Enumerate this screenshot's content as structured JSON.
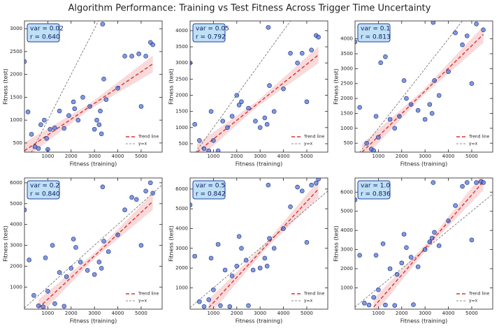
{
  "title": "Algorithm Performance: Training vs Test Fitness Across Trigger Time Uncertainty",
  "chart_data": [
    {
      "type": "scatter",
      "annotation": [
        "var = 0.02",
        "r = 0.640"
      ],
      "xlabel": "Fitness (training)",
      "ylabel": "Fitness (test)",
      "color": "#4a6fd0",
      "xlim": [
        0,
        5900
      ],
      "ylim": [
        300,
        3170
      ],
      "xticks": [
        1000,
        2000,
        3000,
        4000,
        5000
      ],
      "yticks": [
        500,
        1000,
        1500,
        2000,
        2500,
        3000
      ],
      "x": [
        0,
        150,
        300,
        450,
        600,
        700,
        850,
        950,
        1000,
        1100,
        1300,
        1500,
        1700,
        1900,
        2100,
        2150,
        2300,
        2500,
        2800,
        3000,
        3100,
        3200,
        3250,
        3300,
        3350,
        3400,
        3500,
        4000,
        4300,
        4600,
        4900,
        5000,
        5200,
        5400,
        5500
      ],
      "values": [
        2280,
        1180,
        690,
        420,
        380,
        900,
        1000,
        600,
        360,
        800,
        830,
        1200,
        820,
        1100,
        1400,
        1250,
        1000,
        1500,
        1300,
        800,
        1000,
        900,
        1200,
        700,
        3100,
        1900,
        1450,
        1700,
        2400,
        2400,
        2450,
        1300,
        2400,
        2700,
        2650
      ],
      "lines": [
        {
          "name": "Trend line",
          "color": "#e03030",
          "x": [
            0,
            5500
          ],
          "values": [
            330,
            2230
          ]
        },
        {
          "name": "y=x",
          "color": "#666666"
        }
      ]
    },
    {
      "type": "scatter",
      "annotation": [
        "var = 0.05",
        "r = 0.792"
      ],
      "xlabel": "Fitness (training)",
      "ylabel": "Fitness (test)",
      "color": "#4a6fd0",
      "xlim": [
        0,
        5900
      ],
      "ylim": [
        240,
        4300
      ],
      "xticks": [
        1000,
        2000,
        3000,
        4000,
        5000
      ],
      "yticks": [
        500,
        1000,
        1500,
        2000,
        2500,
        3000,
        3500,
        4000
      ],
      "x": [
        0,
        200,
        400,
        600,
        800,
        900,
        1000,
        1200,
        1400,
        1600,
        1800,
        2000,
        2100,
        2200,
        2500,
        2800,
        3000,
        3200,
        3300,
        3350,
        3400,
        3600,
        4000,
        4300,
        4600,
        4800,
        5000,
        5200,
        5400,
        5500
      ],
      "values": [
        3000,
        1100,
        600,
        350,
        280,
        1500,
        600,
        280,
        1200,
        1000,
        1350,
        2000,
        1700,
        1800,
        1600,
        1200,
        1000,
        1300,
        1100,
        4100,
        2300,
        1500,
        2200,
        3300,
        3000,
        3300,
        1800,
        3400,
        3850,
        3800
      ],
      "lines": [
        {
          "name": "Trend line",
          "color": "#e03030",
          "x": [
            300,
            5500
          ],
          "values": [
            240,
            3250
          ]
        },
        {
          "name": "y=x",
          "color": "#666666"
        }
      ]
    },
    {
      "type": "scatter",
      "annotation": [
        "var = 0.1",
        "r = 0.813"
      ],
      "xlabel": "Fitness (training)",
      "ylabel": "Fitness (test)",
      "color": "#4a6fd0",
      "xlim": [
        0,
        5900
      ],
      "ylim": [
        200,
        4600
      ],
      "xticks": [
        1000,
        2000,
        3000,
        4000,
        5000
      ],
      "yticks": [
        500,
        1000,
        1500,
        2000,
        2500,
        3000,
        3500,
        4000
      ],
      "x": [
        0,
        200,
        500,
        700,
        800,
        900,
        1000,
        1300,
        1500,
        1700,
        1900,
        2100,
        2200,
        2400,
        2700,
        3000,
        3200,
        3300,
        3350,
        3400,
        3600,
        4000,
        4300,
        4600,
        4800,
        5000,
        5200,
        5400,
        5500,
        1100
      ],
      "values": [
        3900,
        1700,
        500,
        300,
        250,
        1400,
        700,
        3400,
        1300,
        1000,
        1400,
        2600,
        2000,
        1800,
        1600,
        1300,
        1800,
        1500,
        4550,
        2600,
        2100,
        2900,
        4200,
        3800,
        4100,
        2500,
        4500,
        4700,
        4300,
        3200
      ],
      "lines": [
        {
          "name": "Trend line",
          "color": "#e03030",
          "x": [
            300,
            5500
          ],
          "values": [
            200,
            4150
          ]
        },
        {
          "name": "y=x",
          "color": "#666666"
        }
      ]
    },
    {
      "type": "scatter",
      "annotation": [
        "var = 0.2",
        "r = 0.840"
      ],
      "xlabel": "Fitness (training)",
      "ylabel": "Fitness (test)",
      "color": "#4a6fd0",
      "xlim": [
        0,
        5900
      ],
      "ylim": [
        -60,
        6230
      ],
      "xticks": [
        1000,
        2000,
        3000,
        4000,
        5000
      ],
      "yticks": [
        1000,
        2000,
        3000,
        4000,
        5000,
        6000
      ],
      "x": [
        0,
        200,
        400,
        600,
        800,
        900,
        1000,
        1200,
        1500,
        1800,
        2000,
        2100,
        2200,
        2400,
        2700,
        3000,
        3200,
        3300,
        3350,
        3400,
        3600,
        4000,
        4300,
        4600,
        4800,
        5000,
        5200,
        5400,
        5500,
        1300,
        1700
      ],
      "values": [
        4700,
        2300,
        600,
        100,
        50,
        2400,
        800,
        3000,
        1700,
        1500,
        1900,
        3300,
        2900,
        2200,
        1800,
        1600,
        2200,
        1900,
        5800,
        3200,
        2700,
        3500,
        4700,
        5300,
        5200,
        3000,
        5600,
        6000,
        5500,
        200,
        80
      ],
      "lines": [
        {
          "name": "Trend line",
          "color": "#e03030",
          "x": [
            600,
            5500
          ],
          "values": [
            0,
            5100
          ]
        },
        {
          "name": "y=x",
          "color": "#666666"
        }
      ]
    },
    {
      "type": "scatter",
      "annotation": [
        "var = 0.5",
        "r = 0.842"
      ],
      "xlabel": "Fitness (training)",
      "ylabel": "Fitness (test)",
      "color": "#4a6fd0",
      "xlim": [
        0,
        5900
      ],
      "ylim": [
        -80,
        6560
      ],
      "xticks": [
        1000,
        2000,
        3000,
        4000,
        5000
      ],
      "yticks": [
        1000,
        2000,
        3000,
        4000,
        5000,
        6000
      ],
      "x": [
        0,
        200,
        400,
        600,
        800,
        900,
        1000,
        1200,
        1500,
        1800,
        2000,
        2100,
        2200,
        2400,
        2700,
        3000,
        3200,
        3300,
        3350,
        3400,
        3600,
        4000,
        4300,
        4600,
        4800,
        5000,
        5200,
        5400,
        5500,
        1300,
        1700,
        2500
      ],
      "values": [
        5200,
        2600,
        300,
        50,
        400,
        2500,
        900,
        3200,
        1900,
        1600,
        2100,
        3600,
        3000,
        2400,
        1900,
        2000,
        2500,
        2100,
        6200,
        3500,
        3000,
        4000,
        5100,
        6100,
        5900,
        3300,
        6200,
        6300,
        6500,
        100,
        50,
        100
      ],
      "lines": [
        {
          "name": "Trend line",
          "color": "#e03030",
          "x": [
            800,
            5500
          ],
          "values": [
            0,
            6000
          ]
        },
        {
          "name": "y=x",
          "color": "#666666"
        }
      ]
    },
    {
      "type": "scatter",
      "annotation": [
        "var = 1.0",
        "r = 0.836"
      ],
      "xlabel": "Fitness (training)",
      "ylabel": "Fitness (test)",
      "color": "#4a6fd0",
      "xlim": [
        0,
        5900
      ],
      "ylim": [
        -115,
        6740
      ],
      "xticks": [
        1000,
        2000,
        3000,
        4000,
        5000
      ],
      "yticks": [
        1000,
        2000,
        3000,
        4000,
        5000,
        6000
      ],
      "x": [
        0,
        200,
        400,
        600,
        800,
        900,
        1000,
        1200,
        1500,
        1800,
        2000,
        2100,
        2200,
        2400,
        2700,
        3000,
        3200,
        3300,
        3350,
        3400,
        3600,
        4000,
        4300,
        4600,
        4800,
        5000,
        5200,
        5400,
        5500,
        1300,
        1700,
        2500
      ],
      "values": [
        5600,
        2700,
        200,
        100,
        500,
        2700,
        900,
        3300,
        2000,
        1700,
        2300,
        3800,
        3100,
        2600,
        2100,
        3000,
        3400,
        3600,
        6500,
        3900,
        3200,
        4500,
        5300,
        6300,
        6500,
        3500,
        6500,
        6550,
        6500,
        100,
        80,
        120
      ],
      "lines": [
        {
          "name": "Trend line",
          "color": "#e03030",
          "x": [
            800,
            5500
          ],
          "values": [
            0,
            6550
          ]
        },
        {
          "name": "y=x",
          "color": "#666666"
        }
      ]
    }
  ]
}
